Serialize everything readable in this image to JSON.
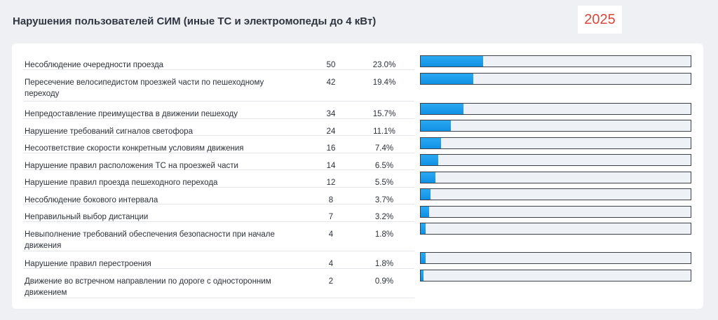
{
  "header": {
    "title": "Нарушения пользователей СИМ (иные ТС и электромопеды до 4 кВт)",
    "year": "2025"
  },
  "colors": {
    "bar": "#1a9ceb",
    "track": "#eef1f6",
    "year": "#d9473b"
  },
  "chart_data": {
    "type": "bar",
    "orientation": "horizontal",
    "title": "Нарушения пользователей СИМ (иные ТС и электромопеды до 4 кВт)",
    "xlim": [
      0,
      217
    ],
    "rows": [
      {
        "label": "Несоблюдение очередности проезда",
        "value": 50,
        "percent": "23.0%"
      },
      {
        "label": "Пересечение велосипедистом проезжей части по пешеходному переходу",
        "value": 42,
        "percent": "19.4%"
      },
      {
        "label": "Непредоставление преимущества в движении пешеходу",
        "value": 34,
        "percent": "15.7%"
      },
      {
        "label": "Нарушение требований сигналов светофора",
        "value": 24,
        "percent": "11.1%"
      },
      {
        "label": "Несоответствие скорости конкретным условиям движения",
        "value": 16,
        "percent": "7.4%"
      },
      {
        "label": "Нарушение правил расположения ТС на проезжей части",
        "value": 14,
        "percent": "6.5%"
      },
      {
        "label": "Нарушение правил проезда пешеходного перехода",
        "value": 12,
        "percent": "5.5%"
      },
      {
        "label": "Несоблюдение бокового интервала",
        "value": 8,
        "percent": "3.7%"
      },
      {
        "label": "Неправильный выбор дистанции",
        "value": 7,
        "percent": "3.2%"
      },
      {
        "label": "Невыполнение требований обеспечения безопасности при начале движения",
        "value": 4,
        "percent": "1.8%"
      },
      {
        "label": "Нарушение правил перестроения",
        "value": 4,
        "percent": "1.8%"
      },
      {
        "label": "Движение во встречном направлении по дороге с односторонним движением",
        "value": 2,
        "percent": "0.9%"
      }
    ]
  }
}
